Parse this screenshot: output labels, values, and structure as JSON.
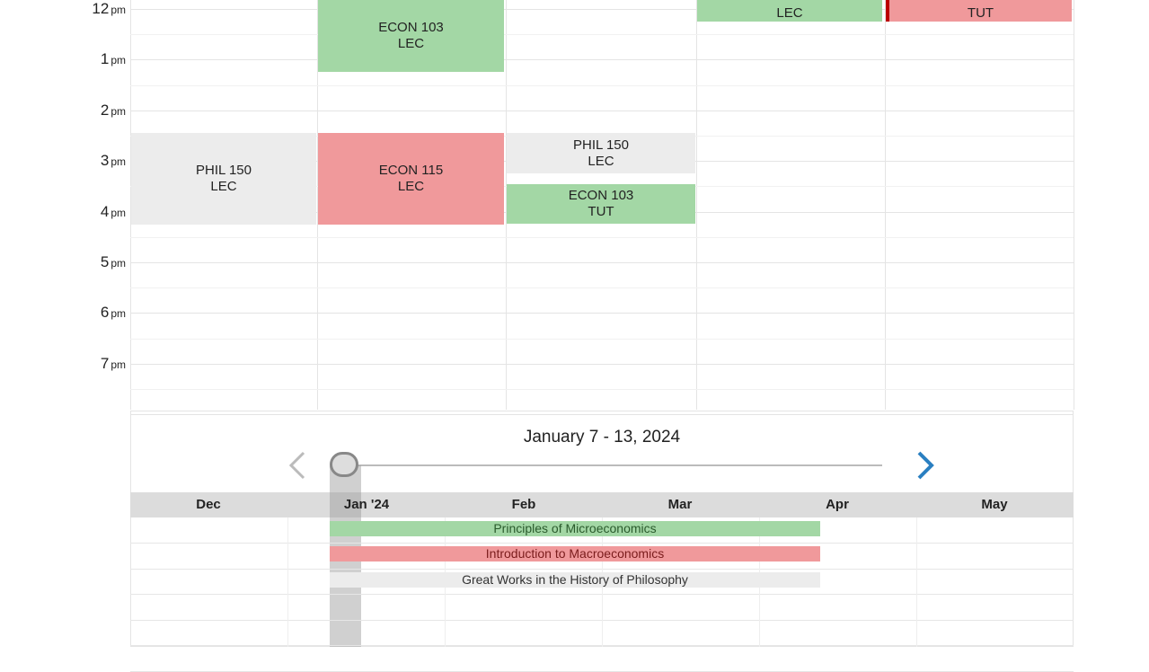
{
  "week_view": {
    "hours": [
      {
        "h": "12",
        "ap": "pm"
      },
      {
        "h": "1",
        "ap": "pm"
      },
      {
        "h": "2",
        "ap": "pm"
      },
      {
        "h": "3",
        "ap": "pm"
      },
      {
        "h": "4",
        "ap": "pm"
      },
      {
        "h": "5",
        "ap": "pm"
      },
      {
        "h": "6",
        "ap": "pm"
      },
      {
        "h": "7",
        "ap": "pm"
      }
    ],
    "events": [
      {
        "course": "ECON 103",
        "type": "LEC",
        "color": "green"
      },
      {
        "course": "",
        "type": "LEC",
        "color": "green"
      },
      {
        "course": "",
        "type": "TUT",
        "color": "red"
      },
      {
        "course": "PHIL 150",
        "type": "LEC",
        "color": "gray"
      },
      {
        "course": "ECON 115",
        "type": "LEC",
        "color": "red"
      },
      {
        "course": "PHIL 150",
        "type": "LEC",
        "color": "gray"
      },
      {
        "course": "ECON 103",
        "type": "TUT",
        "color": "green"
      }
    ]
  },
  "navigator": {
    "range_title": "January 7 - 13, 2024",
    "months": [
      "Dec",
      "Jan '24",
      "Feb",
      "Mar",
      "Apr",
      "May"
    ],
    "courses": [
      "Principles of Microeconomics",
      "Introduction to Macroeconomics",
      "Great Works in the History of Philosophy"
    ]
  },
  "colors": {
    "green": "#a3d7a5",
    "red": "#f0999b",
    "gray": "#ececec",
    "accent": "#2a7fc1"
  }
}
